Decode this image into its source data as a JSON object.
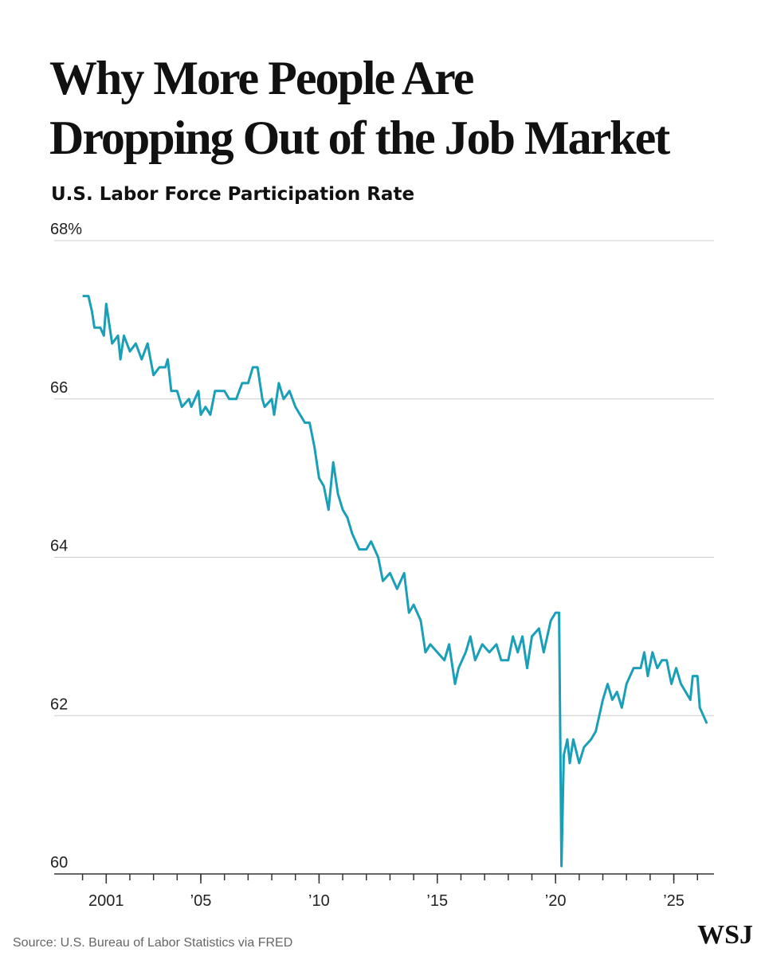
{
  "chart_data": {
    "type": "line",
    "title": [
      "Why More People Are",
      "Dropping Out of the Job Market"
    ],
    "subtitle": "U.S. Labor Force Participation Rate",
    "source": "Source: U.S. Bureau of Labor Statistics via FRED",
    "logo": "WSJ",
    "color": "#1a9fb8",
    "x": [
      2000.0,
      2000.25,
      2000.4,
      2000.5,
      2000.75,
      2000.9,
      2001.0,
      2001.1,
      2001.25,
      2001.5,
      2001.6,
      2001.75,
      2002.0,
      2002.25,
      2002.5,
      2002.75,
      2003.0,
      2003.25,
      2003.5,
      2003.6,
      2003.75,
      2004.0,
      2004.2,
      2004.5,
      2004.6,
      2004.9,
      2005.0,
      2005.2,
      2005.4,
      2005.6,
      2006.0,
      2006.2,
      2006.5,
      2006.75,
      2007.0,
      2007.2,
      2007.4,
      2007.6,
      2007.7,
      2008.0,
      2008.1,
      2008.3,
      2008.5,
      2008.75,
      2009.0,
      2009.2,
      2009.4,
      2009.6,
      2009.8,
      2010.0,
      2010.2,
      2010.4,
      2010.5,
      2010.6,
      2010.8,
      2011.0,
      2011.2,
      2011.4,
      2011.7,
      2012.0,
      2012.2,
      2012.5,
      2012.7,
      2013.0,
      2013.3,
      2013.6,
      2013.8,
      2014.0,
      2014.3,
      2014.5,
      2014.7,
      2015.0,
      2015.3,
      2015.5,
      2015.75,
      2015.9,
      2016.2,
      2016.4,
      2016.6,
      2016.9,
      2017.2,
      2017.5,
      2017.7,
      2018.0,
      2018.2,
      2018.4,
      2018.6,
      2018.8,
      2019.0,
      2019.3,
      2019.5,
      2019.8,
      2020.0,
      2020.15,
      2020.25,
      2020.35,
      2020.5,
      2020.6,
      2020.75,
      2021.0,
      2021.2,
      2021.5,
      2021.7,
      2022.0,
      2022.2,
      2022.4,
      2022.6,
      2022.8,
      2023.0,
      2023.3,
      2023.6,
      2023.75,
      2023.9,
      2024.1,
      2024.3,
      2024.5,
      2024.7,
      2024.9,
      2025.1,
      2025.3,
      2025.5,
      2025.7,
      2025.8,
      2026.0,
      2026.1,
      2026.4
    ],
    "values": [
      67.3,
      67.3,
      67.1,
      66.9,
      66.9,
      66.8,
      67.2,
      67.0,
      66.7,
      66.8,
      66.5,
      66.8,
      66.6,
      66.7,
      66.5,
      66.7,
      66.3,
      66.4,
      66.4,
      66.5,
      66.1,
      66.1,
      65.9,
      66.0,
      65.9,
      66.1,
      65.8,
      65.9,
      65.8,
      66.1,
      66.1,
      66.0,
      66.0,
      66.2,
      66.2,
      66.4,
      66.4,
      66.0,
      65.9,
      66.0,
      65.8,
      66.2,
      66.0,
      66.1,
      65.9,
      65.8,
      65.7,
      65.7,
      65.4,
      65.0,
      64.9,
      64.6,
      64.9,
      65.2,
      64.8,
      64.6,
      64.5,
      64.3,
      64.1,
      64.1,
      64.2,
      64.0,
      63.7,
      63.8,
      63.6,
      63.8,
      63.3,
      63.4,
      63.2,
      62.8,
      62.9,
      62.8,
      62.7,
      62.9,
      62.4,
      62.6,
      62.8,
      63.0,
      62.7,
      62.9,
      62.8,
      62.9,
      62.7,
      62.7,
      63.0,
      62.8,
      63.0,
      62.6,
      63.0,
      63.1,
      62.8,
      63.2,
      63.3,
      63.3,
      60.1,
      61.5,
      61.7,
      61.4,
      61.7,
      61.4,
      61.6,
      61.7,
      61.8,
      62.2,
      62.4,
      62.2,
      62.3,
      62.1,
      62.4,
      62.6,
      62.6,
      62.8,
      62.5,
      62.8,
      62.6,
      62.7,
      62.7,
      62.4,
      62.6,
      62.4,
      62.3,
      62.2,
      62.5,
      62.5,
      62.1,
      61.9
    ],
    "xlim": [
      1998.8,
      2026.7
    ],
    "xticks": [
      {
        "value": 2001,
        "label": "2001"
      },
      {
        "value": 2005,
        "label": "’05"
      },
      {
        "value": 2010,
        "label": "’10"
      },
      {
        "value": 2015,
        "label": "’15"
      },
      {
        "value": 2020,
        "label": "’20"
      },
      {
        "value": 2025,
        "label": "’25"
      }
    ],
    "xminor_ticks": [
      2000,
      2001,
      2002,
      2003,
      2004,
      2005,
      2006,
      2007,
      2008,
      2009,
      2010,
      2011,
      2012,
      2013,
      2014,
      2015,
      2016,
      2017,
      2018,
      2019,
      2020,
      2021,
      2022,
      2023,
      2024,
      2025,
      2026
    ],
    "ylim": [
      60,
      68
    ],
    "yticks": [
      60,
      62,
      64,
      66,
      {
        "value": 68,
        "label": "68%"
      }
    ],
    "grid": true
  }
}
